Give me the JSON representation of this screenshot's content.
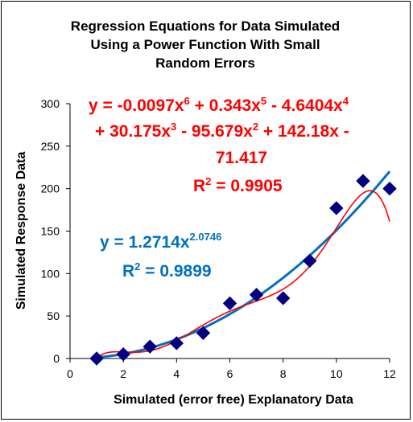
{
  "chart_data": {
    "type": "scatter",
    "title": [
      "Regression Equations for Data Simulated",
      "Using a Power Function With Small",
      "Random Errors"
    ],
    "xlabel": "Simulated (error free) Explanatory Data",
    "ylabel": "Simulated Response Data",
    "xlim": [
      0,
      12
    ],
    "ylim": [
      0,
      300
    ],
    "x_ticks": [
      "0",
      "2",
      "4",
      "6",
      "8",
      "10",
      "12"
    ],
    "y_ticks": [
      "0",
      "50",
      "100",
      "150",
      "200",
      "250",
      "300"
    ],
    "grid": false,
    "legend": "none",
    "series": [
      {
        "kind": "points",
        "marker": "diamond",
        "color": "#000080",
        "x": [
          1,
          2,
          3,
          4,
          5,
          6,
          7,
          8,
          9,
          10,
          11,
          12
        ],
        "y": [
          0,
          5,
          14,
          18,
          30,
          65,
          75,
          71,
          115,
          177,
          209,
          200
        ]
      },
      {
        "kind": "power-fit",
        "color": "#0070c0",
        "a": 1.2714,
        "b": 2.0746
      },
      {
        "kind": "poly6-fit",
        "color": "#ff0000",
        "coefficients": [
          -71.417,
          142.18,
          -95.679,
          30.175,
          -4.6404,
          0.343,
          -0.0097
        ]
      }
    ],
    "annotations": {
      "poly": {
        "line1_a": "y = -0.0097x",
        "line1_e1": "6",
        "line1_b": " + 0.343x",
        "line1_e2": "5",
        "line1_c": " - 4.6404x",
        "line1_e3": "4",
        "line2_a": "+ 30.175x",
        "line2_e1": "3",
        "line2_b": " - 95.679x",
        "line2_e2": "2",
        "line2_c": " + 142.18x -",
        "line3": "71.417",
        "r2_a": "R",
        "r2_e": "2",
        "r2_b": " = 0.9905"
      },
      "power": {
        "eq_a": "y = 1.2714x",
        "eq_e": "2.0746",
        "r2_a": "R",
        "r2_e": "2",
        "r2_b": " = 0.9899"
      }
    }
  }
}
